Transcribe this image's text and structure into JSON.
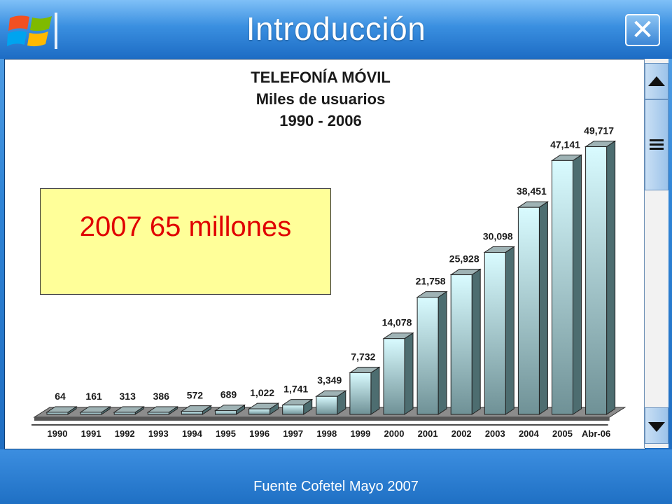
{
  "window": {
    "title": "Introducción",
    "logo_icon": "windows-logo-icon",
    "close_icon": "close-icon"
  },
  "scrollbar": {
    "up_icon": "arrow-up-icon",
    "grip_icon": "grip-icon",
    "down_icon": "arrow-down-icon"
  },
  "callout": {
    "text": "2007 65 millones"
  },
  "footer": {
    "source": "Fuente Cofetel Mayo 2007"
  },
  "colors": {
    "bar_front": "#d9fbff",
    "bar_side": "#4d6d70",
    "callout_bg": "#ffff99",
    "callout_text": "#e00000"
  },
  "chart_data": {
    "type": "bar",
    "title": "TELEFONÍA MÓVIL",
    "subtitle_lines": [
      "Miles de usuarios",
      "1990 - 2006"
    ],
    "categories": [
      "1990",
      "1991",
      "1992",
      "1993",
      "1994",
      "1995",
      "1996",
      "1997",
      "1998",
      "1999",
      "2000",
      "2001",
      "2002",
      "2003",
      "2004",
      "2005",
      "Abr-06"
    ],
    "values": [
      64,
      161,
      313,
      386,
      572,
      689,
      1022,
      1741,
      3349,
      7732,
      14078,
      21758,
      25928,
      30098,
      38451,
      47141,
      49717
    ],
    "value_labels": [
      "64",
      "161",
      "313",
      "386",
      "572",
      "689",
      "1,022",
      "1,741",
      "3,349",
      "7,732",
      "14,078",
      "21,758",
      "25,928",
      "30,098",
      "38,451",
      "47,141",
      "49,717"
    ],
    "ylim": [
      0,
      52000
    ],
    "xlabel": "",
    "ylabel": "",
    "grid": false
  }
}
